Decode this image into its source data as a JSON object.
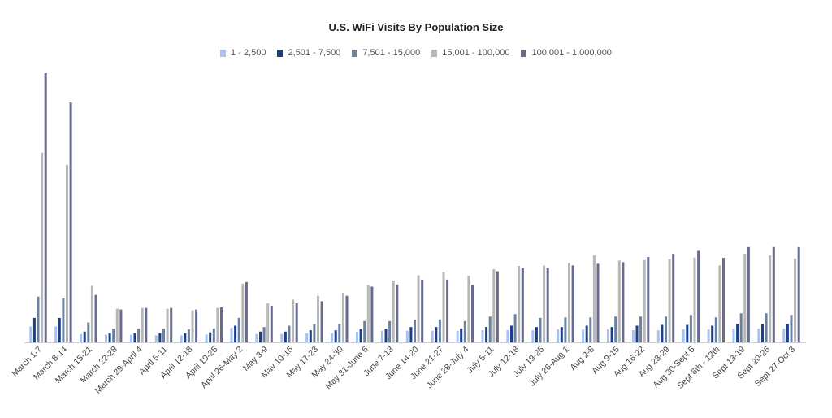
{
  "chart_data": {
    "type": "bar",
    "title": "U.S. WiFi Visits By Population Size",
    "xlabel": "",
    "ylabel": "",
    "legend_position": "top",
    "grid": false,
    "ylim": [
      0,
      100
    ],
    "categories": [
      "March 1-7",
      "March 8-14",
      "March 15-21",
      "March 22-28",
      "March 29-April 4",
      "April 5-11",
      "April 12-18",
      "April 19-25",
      "April 26-May 2",
      "May 3-9",
      "May 10-16",
      "May 17-23",
      "May 24-30",
      "May 31-June 6",
      "June 7-13",
      "June 14-20",
      "June 21-27",
      "June 28-July 4",
      "July 5-11",
      "July 12-18",
      "July 19-25",
      "July 26-Aug 1",
      "Aug 2-8",
      "Aug 9-15",
      "Aug 16-22",
      "Aug 23-29",
      "Aug 30-Sept 5",
      "Sept 6th - 12th",
      "Sept 13-19",
      "Sept 20-26",
      "Sept 27-Oct 3"
    ],
    "series": [
      {
        "name": "1 - 2,500",
        "color": "#a4c2f4",
        "values": [
          5.9,
          5.9,
          3.1,
          2.8,
          2.8,
          2.6,
          2.6,
          2.9,
          5.4,
          3.1,
          3.1,
          3.4,
          3.4,
          3.9,
          4.3,
          4.3,
          4.3,
          4.3,
          4.5,
          4.5,
          4.5,
          4.8,
          4.8,
          4.8,
          4.5,
          4.5,
          4.8,
          4.8,
          5.1,
          5.1,
          5.1
        ]
      },
      {
        "name": "2,501 - 7,500",
        "color": "#1c3f86",
        "values": [
          9.1,
          9.1,
          4.0,
          3.4,
          3.4,
          3.4,
          3.4,
          3.7,
          6.2,
          4.0,
          4.0,
          4.5,
          4.5,
          5.1,
          5.1,
          5.7,
          5.7,
          5.1,
          5.7,
          6.2,
          5.7,
          5.7,
          6.2,
          5.7,
          6.2,
          6.5,
          6.5,
          6.2,
          6.8,
          6.8,
          6.8
        ]
      },
      {
        "name": "7,501 - 15,000",
        "color": "#6b829f",
        "values": [
          17.0,
          16.4,
          7.4,
          5.1,
          5.1,
          5.1,
          4.8,
          5.1,
          9.1,
          5.7,
          6.2,
          6.8,
          6.8,
          7.9,
          7.9,
          8.5,
          8.5,
          7.9,
          9.6,
          10.5,
          9.1,
          9.3,
          9.3,
          9.6,
          9.6,
          9.6,
          10.2,
          9.3,
          10.8,
          10.8,
          10.2
        ]
      },
      {
        "name": "15,001 - 100,000",
        "color": "#b7b7b7",
        "values": [
          70.5,
          65.9,
          21.0,
          12.5,
          12.8,
          12.5,
          11.9,
          12.8,
          21.8,
          14.5,
          15.9,
          17.3,
          18.4,
          21.3,
          23.0,
          24.9,
          26.1,
          24.7,
          27.2,
          28.4,
          28.6,
          29.5,
          32.3,
          30.4,
          30.6,
          30.9,
          31.5,
          28.6,
          32.9,
          32.3,
          31.2
        ]
      },
      {
        "name": "100,001 - 1,000,000",
        "color": "#666b8f",
        "values": [
          100.0,
          89.1,
          17.6,
          12.2,
          12.8,
          12.8,
          12.2,
          13.0,
          22.4,
          13.6,
          14.5,
          15.3,
          17.3,
          20.7,
          21.5,
          23.3,
          23.3,
          21.3,
          26.4,
          27.5,
          27.5,
          28.6,
          29.2,
          29.8,
          31.7,
          32.9,
          34.0,
          31.4,
          35.4,
          35.4,
          35.4
        ]
      }
    ]
  }
}
